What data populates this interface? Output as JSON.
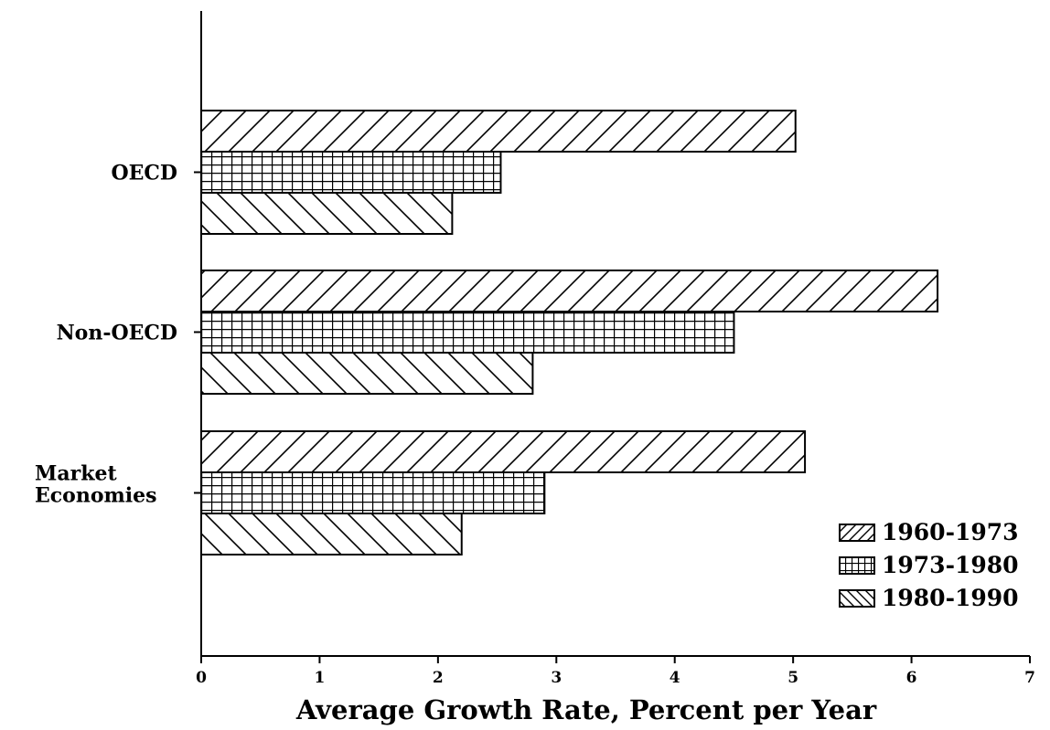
{
  "chart_data": {
    "type": "bar",
    "orientation": "horizontal",
    "categories": [
      "OECD",
      "Non-OECD",
      "Market\nEconomies"
    ],
    "series": [
      {
        "name": "1960-1973",
        "values": [
          5.02,
          6.22,
          5.1
        ],
        "pattern": "diagonal-up"
      },
      {
        "name": "1973-1980",
        "values": [
          2.53,
          4.5,
          2.9
        ],
        "pattern": "grid"
      },
      {
        "name": "1980-1990",
        "values": [
          2.12,
          2.8,
          2.2
        ],
        "pattern": "diagonal-down"
      }
    ],
    "title": "",
    "xlabel": "Average Growth Rate, Percent per Year",
    "ylabel": "",
    "xlim": [
      0,
      7
    ],
    "xticks": [
      "0",
      "1",
      "2",
      "3",
      "4",
      "5",
      "6",
      "7"
    ],
    "grid": false,
    "legend_position": "bottom-right",
    "colors": {
      "ink": "#000000",
      "background": "#ffffff"
    }
  }
}
